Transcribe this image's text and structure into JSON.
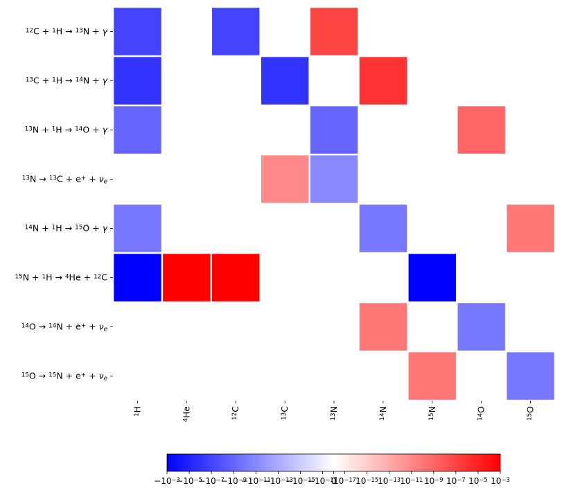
{
  "chart_data": {
    "type": "heatmap",
    "title": "",
    "xlabel": "",
    "ylabel": "",
    "columns": [
      {
        "key": "H1",
        "label": [
          {
            "t": "1",
            "sup": true
          },
          {
            "t": "H",
            "sup": false
          }
        ]
      },
      {
        "key": "He4",
        "label": [
          {
            "t": "4",
            "sup": true
          },
          {
            "t": "He",
            "sup": false
          }
        ]
      },
      {
        "key": "C12",
        "label": [
          {
            "t": "12",
            "sup": true
          },
          {
            "t": "C",
            "sup": false
          }
        ]
      },
      {
        "key": "C13",
        "label": [
          {
            "t": "13",
            "sup": true
          },
          {
            "t": "C",
            "sup": false
          }
        ]
      },
      {
        "key": "N13",
        "label": [
          {
            "t": "13",
            "sup": true
          },
          {
            "t": "N",
            "sup": false
          }
        ]
      },
      {
        "key": "N14",
        "label": [
          {
            "t": "14",
            "sup": true
          },
          {
            "t": "N",
            "sup": false
          }
        ]
      },
      {
        "key": "N15",
        "label": [
          {
            "t": "15",
            "sup": true
          },
          {
            "t": "N",
            "sup": false
          }
        ]
      },
      {
        "key": "O14",
        "label": [
          {
            "t": "14",
            "sup": true
          },
          {
            "t": "O",
            "sup": false
          }
        ]
      },
      {
        "key": "O15",
        "label": [
          {
            "t": "15",
            "sup": true
          },
          {
            "t": "O",
            "sup": false
          }
        ]
      }
    ],
    "rows": [
      {
        "key": "r1",
        "label": [
          {
            "t": "12",
            "sup": true
          },
          {
            "t": "C + "
          },
          {
            "t": "1",
            "sup": true
          },
          {
            "t": "H → "
          },
          {
            "t": "13",
            "sup": true
          },
          {
            "t": "N + "
          },
          {
            "t": "γ",
            "it": true
          }
        ],
        "values": [
          -1e-07,
          0,
          -1e-07,
          0,
          1e-07,
          0,
          0,
          0,
          0
        ]
      },
      {
        "key": "r2",
        "label": [
          {
            "t": "13",
            "sup": true
          },
          {
            "t": "C + "
          },
          {
            "t": "1",
            "sup": true
          },
          {
            "t": "H → "
          },
          {
            "t": "14",
            "sup": true
          },
          {
            "t": "N + "
          },
          {
            "t": "γ",
            "it": true
          }
        ],
        "values": [
          -1e-06,
          0,
          0,
          -1e-06,
          0,
          1e-06,
          0,
          0,
          0
        ]
      },
      {
        "key": "r3",
        "label": [
          {
            "t": "13",
            "sup": true
          },
          {
            "t": "N + "
          },
          {
            "t": "1",
            "sup": true
          },
          {
            "t": "H → "
          },
          {
            "t": "14",
            "sup": true
          },
          {
            "t": "O + "
          },
          {
            "t": "γ",
            "it": true
          }
        ],
        "values": [
          -1e-09,
          0,
          0,
          0,
          -1e-09,
          0,
          0,
          1e-09,
          0
        ]
      },
      {
        "key": "r4",
        "label": [
          {
            "t": "13",
            "sup": true
          },
          {
            "t": "N → "
          },
          {
            "t": "13",
            "sup": true
          },
          {
            "t": "C + e"
          },
          {
            "t": "+",
            "sup": true
          },
          {
            "t": " + "
          },
          {
            "t": "ν",
            "it": true
          },
          {
            "t": "e",
            "sub": true,
            "it": true
          }
        ],
        "values": [
          0,
          0,
          0,
          1e-11,
          -1e-11,
          0,
          0,
          0,
          0
        ]
      },
      {
        "key": "r5",
        "label": [
          {
            "t": "14",
            "sup": true
          },
          {
            "t": "N + "
          },
          {
            "t": "1",
            "sup": true
          },
          {
            "t": "H → "
          },
          {
            "t": "15",
            "sup": true
          },
          {
            "t": "O + "
          },
          {
            "t": "γ",
            "it": true
          }
        ],
        "values": [
          -1e-10,
          0,
          0,
          0,
          0,
          -1e-10,
          0,
          0,
          1e-10
        ]
      },
      {
        "key": "r6",
        "label": [
          {
            "t": "15",
            "sup": true
          },
          {
            "t": "N + "
          },
          {
            "t": "1",
            "sup": true
          },
          {
            "t": "H → "
          },
          {
            "t": "4",
            "sup": true
          },
          {
            "t": "He + "
          },
          {
            "t": "12",
            "sup": true
          },
          {
            "t": "C"
          }
        ],
        "values": [
          -0.001,
          0.001,
          0.001,
          0,
          0,
          0,
          -0.001,
          0,
          0
        ]
      },
      {
        "key": "r7",
        "label": [
          {
            "t": "14",
            "sup": true
          },
          {
            "t": "O → "
          },
          {
            "t": "14",
            "sup": true
          },
          {
            "t": "N + e"
          },
          {
            "t": "+",
            "sup": true
          },
          {
            "t": " + "
          },
          {
            "t": "ν",
            "it": true
          },
          {
            "t": "e",
            "sub": true,
            "it": true
          }
        ],
        "values": [
          0,
          0,
          0,
          0,
          0,
          1e-10,
          0,
          -1e-10,
          0
        ]
      },
      {
        "key": "r8",
        "label": [
          {
            "t": "15",
            "sup": true
          },
          {
            "t": "O → "
          },
          {
            "t": "15",
            "sup": true
          },
          {
            "t": "N + e"
          },
          {
            "t": "+",
            "sup": true
          },
          {
            "t": " + "
          },
          {
            "t": "ν",
            "it": true
          },
          {
            "t": "e",
            "sub": true,
            "it": true
          }
        ],
        "values": [
          0,
          0,
          0,
          0,
          0,
          0,
          1e-10,
          0,
          -1e-10
        ]
      }
    ],
    "colorbar": {
      "type": "symlog",
      "linthresh": 1e-17,
      "vmin": -0.001,
      "vmax": 0.001,
      "colors": {
        "negative": "#0000ff",
        "zero": "#ffffff",
        "positive": "#ff0000"
      },
      "orientation": "horizontal",
      "ticks": [
        {
          "value": -0.001,
          "label": [
            {
              "t": "−10"
            },
            {
              "t": "−3",
              "sup": true
            }
          ]
        },
        {
          "value": -1e-05,
          "label": [
            {
              "t": "−10"
            },
            {
              "t": "−5",
              "sup": true
            }
          ]
        },
        {
          "value": -1e-07,
          "label": [
            {
              "t": "−10"
            },
            {
              "t": "−7",
              "sup": true
            }
          ]
        },
        {
          "value": -1e-09,
          "label": [
            {
              "t": "−10"
            },
            {
              "t": "−9",
              "sup": true
            }
          ]
        },
        {
          "value": -1e-11,
          "label": [
            {
              "t": "−10"
            },
            {
              "t": "−11",
              "sup": true
            }
          ]
        },
        {
          "value": -1e-13,
          "label": [
            {
              "t": "−10"
            },
            {
              "t": "−13",
              "sup": true
            }
          ]
        },
        {
          "value": -1e-15,
          "label": [
            {
              "t": "−10"
            },
            {
              "t": "−15",
              "sup": true
            }
          ]
        },
        {
          "value": -1e-17,
          "label": [
            {
              "t": "−10"
            },
            {
              "t": "−17",
              "sup": true
            }
          ]
        },
        {
          "value": 0,
          "label": [
            {
              "t": "0"
            }
          ]
        },
        {
          "value": 1e-17,
          "label": [
            {
              "t": "10"
            },
            {
              "t": "−17",
              "sup": true
            }
          ]
        },
        {
          "value": 1e-15,
          "label": [
            {
              "t": "10"
            },
            {
              "t": "−15",
              "sup": true
            }
          ]
        },
        {
          "value": 1e-13,
          "label": [
            {
              "t": "10"
            },
            {
              "t": "−13",
              "sup": true
            }
          ]
        },
        {
          "value": 1e-11,
          "label": [
            {
              "t": "10"
            },
            {
              "t": "−11",
              "sup": true
            }
          ]
        },
        {
          "value": 1e-09,
          "label": [
            {
              "t": "10"
            },
            {
              "t": "−9",
              "sup": true
            }
          ]
        },
        {
          "value": 1e-07,
          "label": [
            {
              "t": "10"
            },
            {
              "t": "−7",
              "sup": true
            }
          ]
        },
        {
          "value": 1e-05,
          "label": [
            {
              "t": "10"
            },
            {
              "t": "−5",
              "sup": true
            }
          ]
        },
        {
          "value": 0.001,
          "label": [
            {
              "t": "10"
            },
            {
              "t": "−3",
              "sup": true
            }
          ]
        }
      ]
    }
  }
}
